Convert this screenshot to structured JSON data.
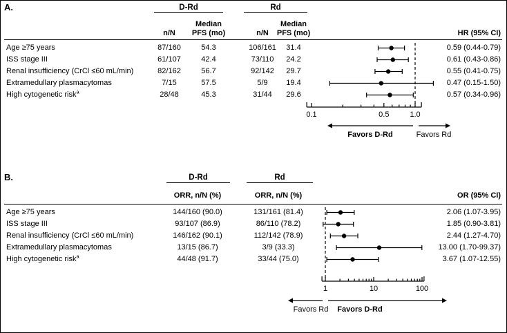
{
  "figure": {
    "panel_a_label": "A.",
    "panel_b_label": "B."
  },
  "chart_data": [
    {
      "panel": "A",
      "type": "forest",
      "group_headers": [
        "D-Rd",
        "Rd"
      ],
      "col_headers": {
        "nN": "n/N",
        "median_pfs": "Median PFS (mo)"
      },
      "effect_header": "HR (95% CI)",
      "rows": [
        {
          "label": "Age ≥75 years",
          "sup": "",
          "values": [
            "87/160",
            "54.3",
            "106/161",
            "31.4"
          ],
          "est": 0.59,
          "lo": 0.44,
          "hi": 0.79,
          "effect_text": "0.59 (0.44-0.79)"
        },
        {
          "label": "ISS stage III",
          "sup": "",
          "values": [
            "61/107",
            "42.4",
            "73/110",
            "24.2"
          ],
          "est": 0.61,
          "lo": 0.43,
          "hi": 0.86,
          "effect_text": "0.61 (0.43-0.86)"
        },
        {
          "label": "Renal insufficiency (CrCl ≤60 mL/min)",
          "sup": "",
          "values": [
            "82/162",
            "56.7",
            "92/142",
            "29.7"
          ],
          "est": 0.55,
          "lo": 0.41,
          "hi": 0.75,
          "effect_text": "0.55 (0.41-0.75)"
        },
        {
          "label": "Extramedullary plasmacytomas",
          "sup": "",
          "values": [
            "7/15",
            "57.5",
            "5/9",
            "19.4"
          ],
          "est": 0.47,
          "lo": 0.15,
          "hi": 1.5,
          "effect_text": "0.47 (0.15-1.50)"
        },
        {
          "label": "High cytogenetic risk",
          "sup": "a",
          "values": [
            "28/48",
            "45.3",
            "31/44",
            "29.6"
          ],
          "est": 0.57,
          "lo": 0.34,
          "hi": 0.96,
          "effect_text": "0.57 (0.34-0.96)"
        }
      ],
      "axis": {
        "scale": "log",
        "reference": 1.0,
        "xlim": [
          0.09,
          1.15
        ],
        "ticks": [
          0.1,
          0.5,
          1.0
        ],
        "tick_labels": [
          "0.1",
          "0.5",
          "1.0"
        ]
      },
      "favors": {
        "left": "Favors D-Rd",
        "left_bold": true,
        "right": "Favors Rd",
        "right_bold": false
      }
    },
    {
      "panel": "B",
      "type": "forest",
      "group_headers": [
        "D-Rd",
        "Rd"
      ],
      "col_headers": {
        "orr": "ORR, n/N (%)"
      },
      "effect_header": "OR (95% CI)",
      "rows": [
        {
          "label": "Age ≥75 years",
          "sup": "",
          "values": [
            "144/160 (90.0)",
            "131/161 (81.4)"
          ],
          "est": 2.06,
          "lo": 1.07,
          "hi": 3.95,
          "effect_text": "2.06 (1.07-3.95)"
        },
        {
          "label": "ISS stage III",
          "sup": "",
          "values": [
            "93/107 (86.9)",
            "86/110 (78.2)"
          ],
          "est": 1.85,
          "lo": 0.9,
          "hi": 3.81,
          "effect_text": "1.85 (0.90-3.81)"
        },
        {
          "label": "Renal insufficiency (CrCl ≤60 mL/min)",
          "sup": "",
          "values": [
            "146/162 (90.1)",
            "112/142 (78.9)"
          ],
          "est": 2.44,
          "lo": 1.27,
          "hi": 4.7,
          "effect_text": "2.44 (1.27-4.70)"
        },
        {
          "label": "Extramedullary plasmacytomas",
          "sup": "",
          "values": [
            "13/15 (86.7)",
            "3/9 (33.3)"
          ],
          "est": 13.0,
          "lo": 1.7,
          "hi": 99.37,
          "effect_text": "13.00 (1.70-99.37)"
        },
        {
          "label": "High cytogenetic risk",
          "sup": "a",
          "values": [
            "44/48 (91.7)",
            "33/44 (75.0)"
          ],
          "est": 3.67,
          "lo": 1.07,
          "hi": 12.55,
          "effect_text": "3.67 (1.07-12.55)"
        }
      ],
      "axis": {
        "scale": "log",
        "reference": 1,
        "xlim": [
          0.85,
          110
        ],
        "ticks": [
          1,
          10,
          100
        ],
        "tick_labels": [
          "1",
          "10",
          "100"
        ]
      },
      "favors": {
        "left": "Favors Rd",
        "left_bold": false,
        "right": "Favors D-Rd",
        "right_bold": true
      }
    }
  ]
}
